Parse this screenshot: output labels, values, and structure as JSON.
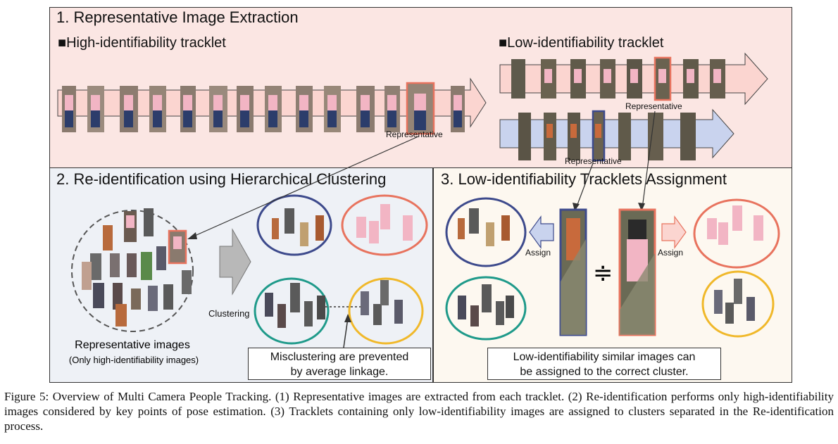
{
  "section1": {
    "title": "1. Representative Image Extraction",
    "high_label": "■High-identifiability tracklet",
    "low_label": "■Low-identifiability tracklet",
    "rep_label_high": "Representative",
    "rep_label_low1": "Representative",
    "rep_label_low2": "Representative"
  },
  "section2": {
    "title": "2. Re-identification using Hierarchical Clustering",
    "rep_images": "Representative images",
    "rep_images_sub": "(Only high-identifiability images)",
    "clustering": "Clustering",
    "note_line1": "Misclustering are prevented",
    "note_line2": "by average linkage."
  },
  "section3": {
    "title": "3. Low-identifiability Tracklets Assignment",
    "assign_left": "Assign",
    "assign_right": "Assign",
    "approx_symbol": "≑",
    "note_line1": "Low-identifiability similar images can",
    "note_line2": "be assigned to the correct cluster."
  },
  "caption": "Figure 5: Overview of Multi Camera People Tracking. (1) Representative images are extracted from each tracklet. (2) Re-identification performs only high-identifiability images considered by key points of pose estimation. (3) Tracklets containing only low-identifiability images are assigned to clusters separated in the Re-identification process.",
  "colors": {
    "section1_bg": "#fbe6e3",
    "section2_bg": "#eef1f6",
    "section3_bg": "#fdf8f0",
    "cluster_blue": "#3d4a8c",
    "cluster_red": "#e8735e",
    "cluster_teal": "#1f9a8a",
    "cluster_yellow": "#f0b82a",
    "arrow_pink": "#fbd5d0",
    "arrow_blue": "#c9d3ee"
  }
}
